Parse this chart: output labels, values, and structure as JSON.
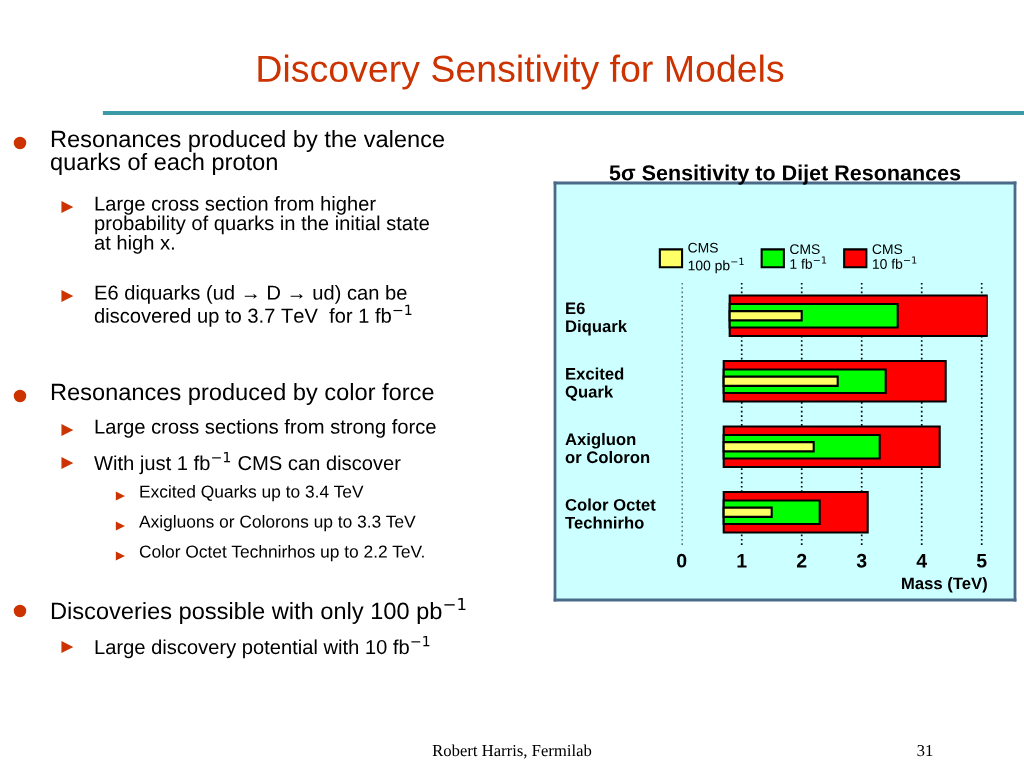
{
  "chart_data": [
    {
      "type": "other",
      "title": "Discovery Sensitivity for Models",
      "annotations": [
        "Resonances produced by the valence\nquarks of each proton",
        "Large cross section from higher\nprobability of quarks in the initial state\nat high x.",
        "E6 diquarks (ud → D → ud) can be\ndiscovered up to 3.7 TeV  for 1 fb$^{−1}$",
        "Resonances produced by color force",
        "Large cross sections from strong force",
        "With just 1 fb$^{−1}$ CMS can discover",
        "Excited Quarks up to 3.4 TeV",
        "Axigluons or Colorons up to 3.3 TeV",
        "Color Octet Technirhos up to 2.2 TeV.",
        "Discoveries possible with only 100 pb$^{−1}$",
        "Large discovery potential with 10 fb$^{−1}$",
        "Robert Harris, Fermilab",
        "31"
      ]
    },
    {
      "type": "bar",
      "orientation": "horizontal",
      "title": "5σ Sensitivity to Dijet Resonances",
      "xlabel": "Mass (TeV)",
      "categories": [
        "E6\nDiquark",
        "Excited\nQuark",
        "Axigluon\nor Coloron",
        "Color Octet\nTechnirho"
      ],
      "series": [
        {
          "name": "CMS\n10 fb$^{−1}$",
          "color": "#ff0000",
          "base": [
            0.8,
            0.7,
            0.7,
            0.7
          ],
          "values": [
            4.3,
            3.7,
            3.6,
            2.4
          ]
        },
        {
          "name": "CMS\n1 fb$^{−1}$",
          "color": "#00ff00",
          "base": [
            0.8,
            0.7,
            0.7,
            0.7
          ],
          "values": [
            2.8,
            2.7,
            2.6,
            1.6
          ]
        },
        {
          "name": "CMS\n100 pb$^{−1}$",
          "color": "#ffff66",
          "base": [
            0.8,
            0.7,
            0.7,
            0.7
          ],
          "values": [
            1.2,
            1.9,
            1.5,
            0.8
          ]
        }
      ],
      "xlim": [
        0,
        5.1
      ],
      "xticks": [
        0,
        1,
        2,
        3,
        4,
        5
      ],
      "grid": "x",
      "legend": "top"
    }
  ]
}
